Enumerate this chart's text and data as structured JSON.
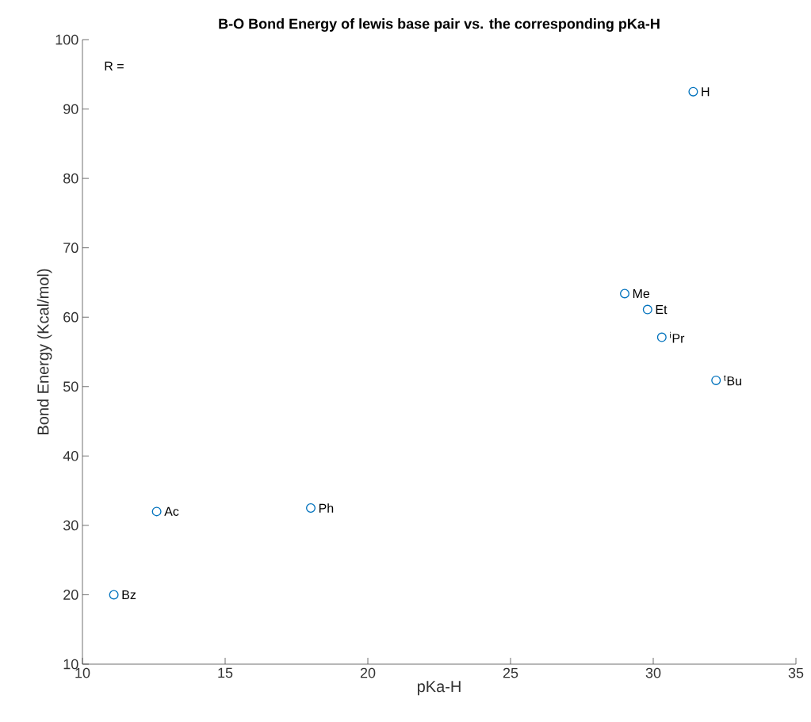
{
  "chart_data": {
    "type": "scatter",
    "title": "B-O Bond Energy of lewis base pair vs. the corresponding pKa-H",
    "xlabel": "pKa-H",
    "ylabel": "Bond Energy (Kcal/mol)",
    "x": [
      31.4,
      29.0,
      29.8,
      30.3,
      32.2,
      18.0,
      12.6,
      11.1
    ],
    "values": [
      92.5,
      63.4,
      61.1,
      57.1,
      50.9,
      32.5,
      32.0,
      20.0
    ],
    "color": "#0072bd",
    "marker": "circle",
    "xlim": [
      10,
      35
    ],
    "xticks": [
      10,
      15,
      20,
      25,
      30,
      35
    ],
    "ylim": [
      10,
      100
    ],
    "yticks": [
      10,
      20,
      30,
      40,
      50,
      60,
      70,
      80,
      90,
      100
    ],
    "annotations": [
      "R =",
      {
        "text": "H",
        "x": 31.4,
        "y": 92.5
      },
      {
        "text": "Me",
        "x": 29.0,
        "y": 63.4
      },
      {
        "text": "Et",
        "x": 29.8,
        "y": 61.1
      },
      {
        "text": "$^{i}$Pr",
        "x": 30.3,
        "y": 57.1
      },
      {
        "text": "$^{t}$Bu",
        "x": 32.2,
        "y": 50.9
      },
      {
        "text": "Ph",
        "x": 18.0,
        "y": 32.5
      },
      {
        "text": "Ac",
        "x": 12.6,
        "y": 32.0
      },
      {
        "text": "Bz",
        "x": 11.1,
        "y": 20.0
      }
    ]
  }
}
